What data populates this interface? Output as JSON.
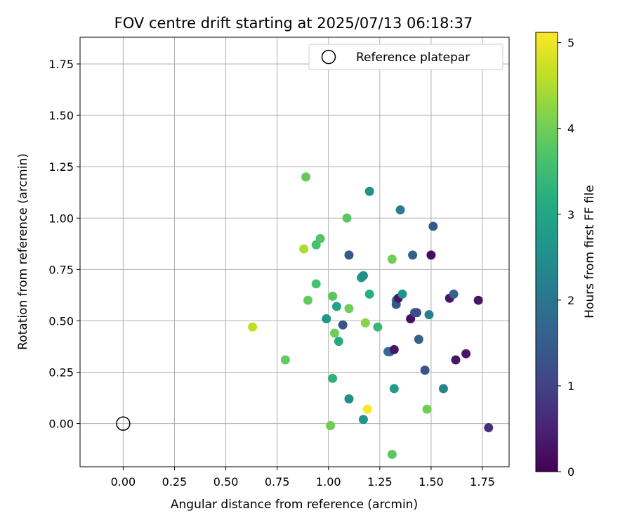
{
  "chart_data": {
    "type": "scatter",
    "title": "FOV centre drift starting at 2025/07/13 06:18:37",
    "xlabel": "Angular distance from reference (arcmin)",
    "ylabel": "Rotation from reference (arcmin)",
    "xlim": [
      -0.21,
      1.88
    ],
    "ylim": [
      -0.21,
      1.88
    ],
    "xticks": [
      "0.00",
      "0.25",
      "0.50",
      "0.75",
      "1.00",
      "1.25",
      "1.50",
      "1.75"
    ],
    "yticks": [
      "0.00",
      "0.25",
      "0.50",
      "0.75",
      "1.00",
      "1.25",
      "1.50",
      "1.75"
    ],
    "xtick_values": [
      0,
      0.25,
      0.5,
      0.75,
      1.0,
      1.25,
      1.5,
      1.75
    ],
    "ytick_values": [
      0,
      0.25,
      0.5,
      0.75,
      1.0,
      1.25,
      1.5,
      1.75
    ],
    "grid": true,
    "legend": {
      "position": "top-right",
      "entries": [
        "Reference platepar"
      ]
    },
    "reference": {
      "name": "Reference platepar",
      "x": 0.0,
      "y": 0.0
    },
    "colorbar": {
      "label": "Hours from first FF file",
      "colormap": "viridis",
      "range": [
        0,
        5.12
      ],
      "ticks": [
        "0",
        "1",
        "2",
        "3",
        "4",
        "5"
      ],
      "tick_values": [
        0,
        1,
        2,
        3,
        4,
        5
      ]
    },
    "points": [
      {
        "x": 0.63,
        "y": 0.47,
        "h": 4.6
      },
      {
        "x": 0.79,
        "y": 0.31,
        "h": 3.9
      },
      {
        "x": 0.88,
        "y": 0.85,
        "h": 4.5
      },
      {
        "x": 0.89,
        "y": 1.2,
        "h": 3.9
      },
      {
        "x": 0.9,
        "y": 0.6,
        "h": 3.9
      },
      {
        "x": 0.94,
        "y": 0.87,
        "h": 3.6
      },
      {
        "x": 0.94,
        "y": 0.68,
        "h": 3.6
      },
      {
        "x": 0.96,
        "y": 0.9,
        "h": 3.7
      },
      {
        "x": 0.99,
        "y": 0.51,
        "h": 2.7
      },
      {
        "x": 1.01,
        "y": -0.01,
        "h": 4.0
      },
      {
        "x": 1.02,
        "y": 0.22,
        "h": 3.3
      },
      {
        "x": 1.02,
        "y": 0.62,
        "h": 3.8
      },
      {
        "x": 1.03,
        "y": 0.44,
        "h": 4.0
      },
      {
        "x": 1.04,
        "y": 0.57,
        "h": 3.0
      },
      {
        "x": 1.05,
        "y": 0.4,
        "h": 3.1
      },
      {
        "x": 1.07,
        "y": 0.48,
        "h": 1.3
      },
      {
        "x": 1.09,
        "y": 1.0,
        "h": 3.8
      },
      {
        "x": 1.1,
        "y": 0.82,
        "h": 1.4
      },
      {
        "x": 1.1,
        "y": 0.56,
        "h": 4.0
      },
      {
        "x": 1.1,
        "y": 0.12,
        "h": 2.5
      },
      {
        "x": 1.16,
        "y": 0.71,
        "h": 2.8
      },
      {
        "x": 1.17,
        "y": 0.72,
        "h": 2.5
      },
      {
        "x": 1.17,
        "y": 0.02,
        "h": 2.6
      },
      {
        "x": 1.18,
        "y": 0.49,
        "h": 4.2
      },
      {
        "x": 1.19,
        "y": 0.07,
        "h": 5.1
      },
      {
        "x": 1.2,
        "y": 1.13,
        "h": 2.6
      },
      {
        "x": 1.2,
        "y": 0.63,
        "h": 3.2
      },
      {
        "x": 1.24,
        "y": 0.47,
        "h": 3.4
      },
      {
        "x": 1.29,
        "y": 0.35,
        "h": 1.9
      },
      {
        "x": 1.3,
        "y": 0.35,
        "h": 1.8
      },
      {
        "x": 1.31,
        "y": 0.8,
        "h": 4.0
      },
      {
        "x": 1.31,
        "y": -0.15,
        "h": 3.8
      },
      {
        "x": 1.32,
        "y": 0.17,
        "h": 2.8
      },
      {
        "x": 1.32,
        "y": 0.36,
        "h": 0.3
      },
      {
        "x": 1.33,
        "y": 0.6,
        "h": 2.2
      },
      {
        "x": 1.33,
        "y": 0.58,
        "h": 1.4
      },
      {
        "x": 1.34,
        "y": 0.61,
        "h": 0.3
      },
      {
        "x": 1.35,
        "y": 1.04,
        "h": 2.1
      },
      {
        "x": 1.36,
        "y": 0.63,
        "h": 2.6
      },
      {
        "x": 1.4,
        "y": 0.51,
        "h": 0.2
      },
      {
        "x": 1.41,
        "y": 0.82,
        "h": 1.6
      },
      {
        "x": 1.42,
        "y": 0.54,
        "h": 1.3
      },
      {
        "x": 1.43,
        "y": 0.54,
        "h": 1.2
      },
      {
        "x": 1.44,
        "y": 0.41,
        "h": 1.6
      },
      {
        "x": 1.47,
        "y": 0.26,
        "h": 1.3
      },
      {
        "x": 1.48,
        "y": 0.07,
        "h": 4.0
      },
      {
        "x": 1.49,
        "y": 0.53,
        "h": 2.2
      },
      {
        "x": 1.5,
        "y": 0.82,
        "h": 0.2
      },
      {
        "x": 1.51,
        "y": 0.96,
        "h": 1.4
      },
      {
        "x": 1.56,
        "y": 0.17,
        "h": 2.3
      },
      {
        "x": 1.59,
        "y": 0.61,
        "h": 0.3
      },
      {
        "x": 1.61,
        "y": 0.63,
        "h": 1.6
      },
      {
        "x": 1.62,
        "y": 0.31,
        "h": 0.3
      },
      {
        "x": 1.67,
        "y": 0.34,
        "h": 0.3
      },
      {
        "x": 1.73,
        "y": 0.6,
        "h": 0.3
      },
      {
        "x": 1.78,
        "y": -0.02,
        "h": 0.7
      }
    ]
  }
}
